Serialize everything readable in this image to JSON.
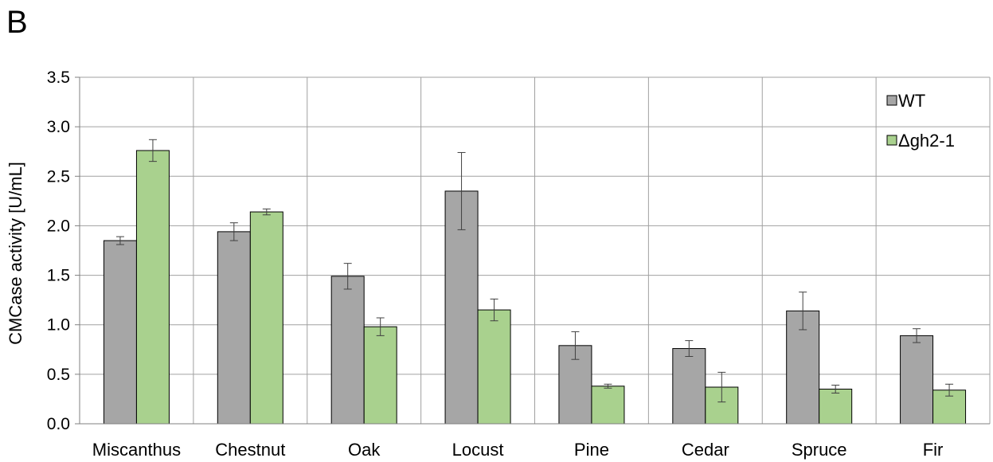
{
  "panel_label": "B",
  "chart_data": {
    "type": "bar",
    "categories": [
      "Miscanthus",
      "Chestnut",
      "Oak",
      "Locust",
      "Pine",
      "Cedar",
      "Spruce",
      "Fir"
    ],
    "ylabel": "CMCase activity [U/mL]",
    "ylim": [
      0,
      3.5
    ],
    "yticks": [
      "0.0",
      "0.5",
      "1.0",
      "1.5",
      "2.0",
      "2.5",
      "3.0",
      "3.5"
    ],
    "grid": true,
    "legend_position": "top-right",
    "series": [
      {
        "name": "WT",
        "color": "#a6a6a6",
        "values": [
          1.85,
          1.94,
          1.49,
          2.35,
          0.79,
          0.76,
          1.14,
          0.89
        ],
        "errors": [
          0.04,
          0.09,
          0.13,
          0.39,
          0.14,
          0.08,
          0.19,
          0.07
        ]
      },
      {
        "name": "Δgh2-1",
        "color": "#a9d18e",
        "values": [
          2.76,
          2.14,
          0.98,
          1.15,
          0.38,
          0.37,
          0.35,
          0.34
        ],
        "errors": [
          0.11,
          0.03,
          0.09,
          0.11,
          0.02,
          0.15,
          0.04,
          0.06
        ]
      }
    ]
  }
}
